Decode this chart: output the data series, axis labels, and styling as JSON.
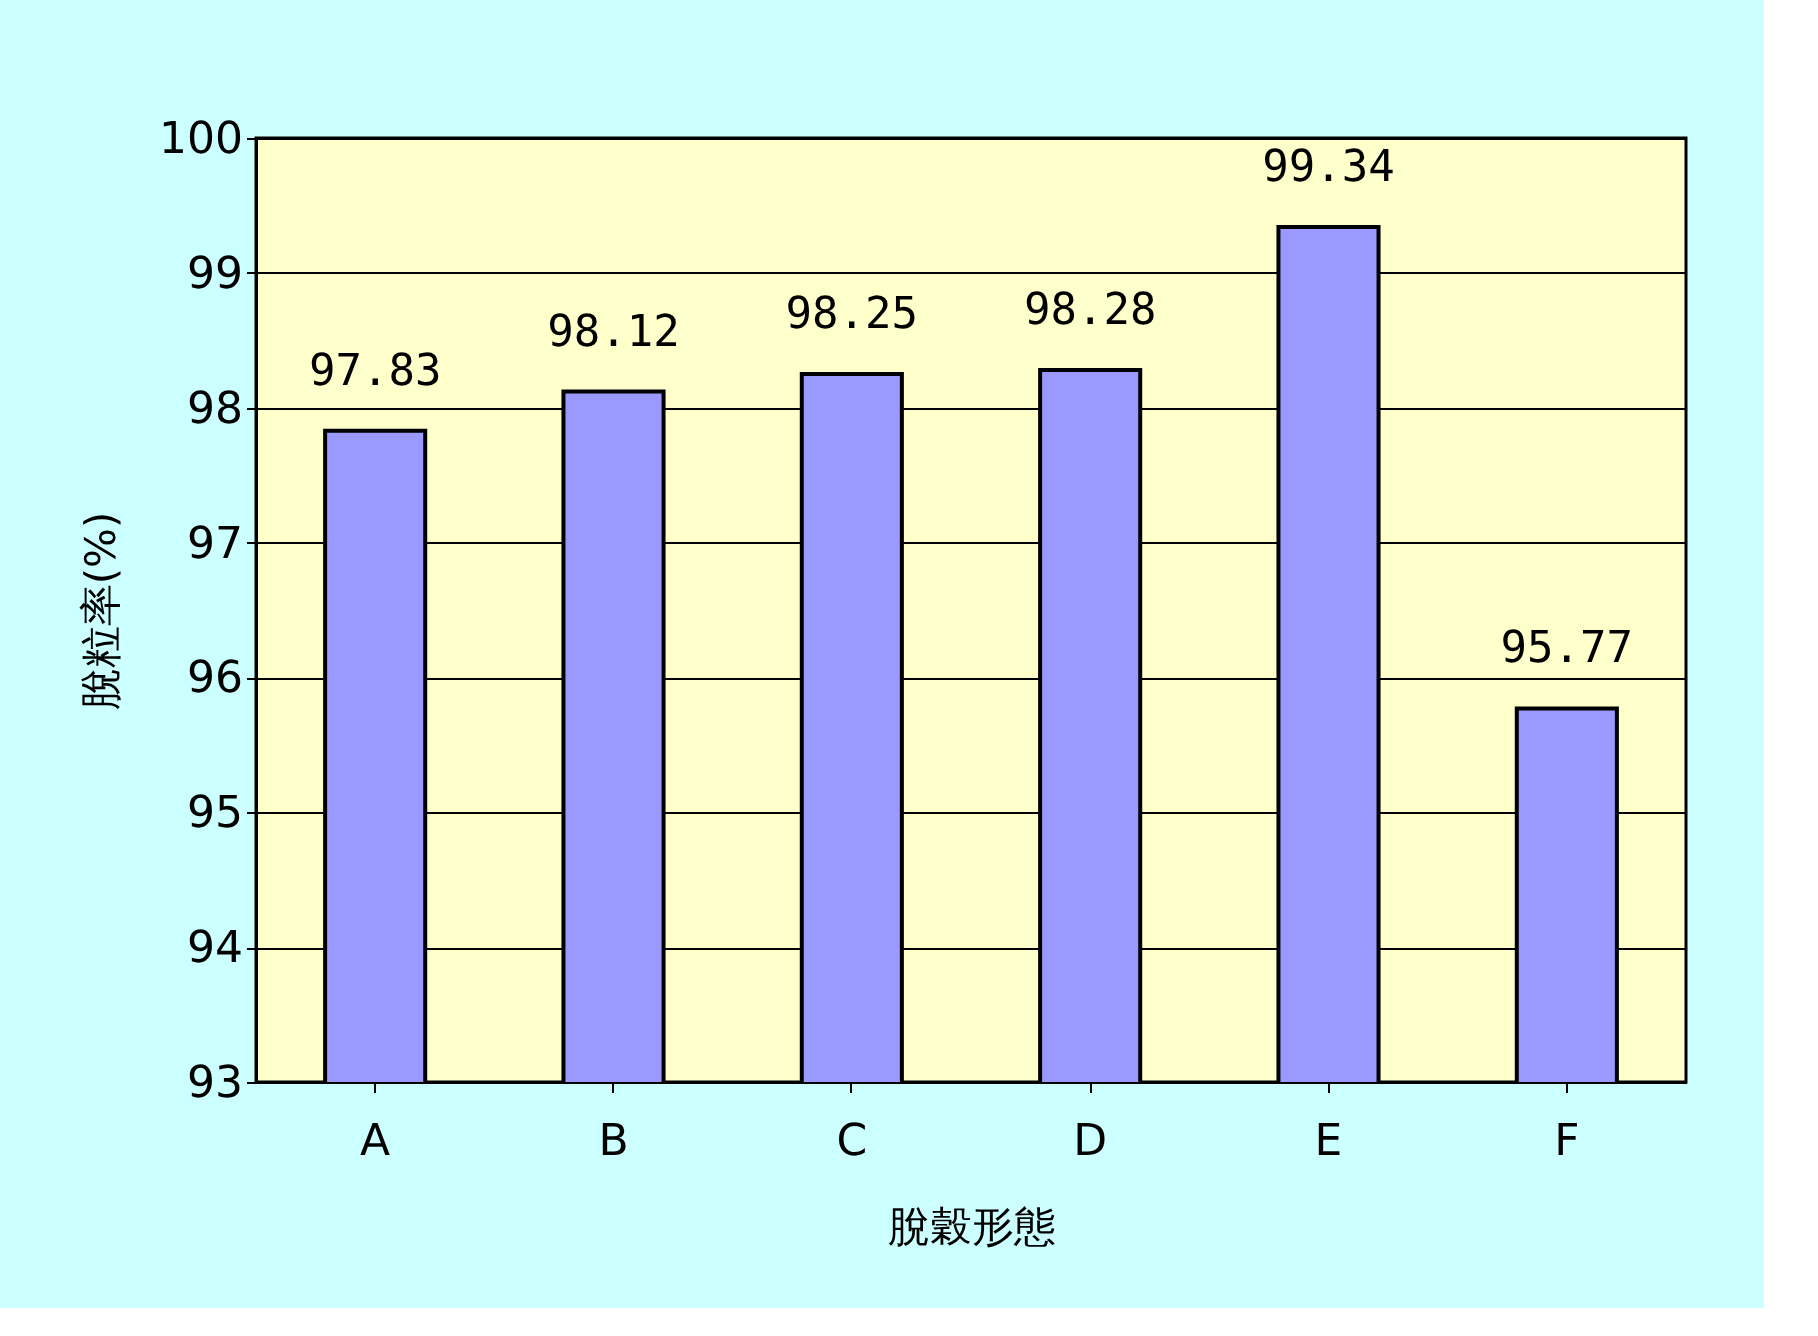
{
  "chart_data": {
    "type": "bar",
    "categories": [
      "A",
      "B",
      "C",
      "D",
      "E",
      "F"
    ],
    "values": [
      97.83,
      98.12,
      98.25,
      98.28,
      99.34,
      95.77
    ],
    "color": "#9999ff",
    "xlabel": "脫穀形態",
    "ylabel": "脫粒率(%)",
    "ylim": [
      93,
      100
    ],
    "yticks": [
      93,
      94,
      95,
      96,
      97,
      98,
      99,
      100
    ],
    "grid": "y",
    "data_labels": true
  }
}
